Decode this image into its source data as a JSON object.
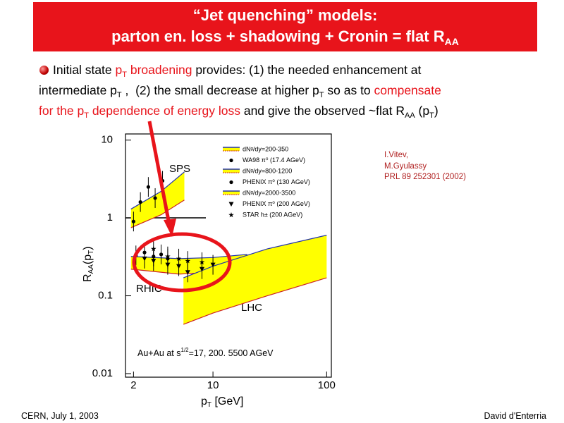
{
  "header": {
    "line1": "“Jet quenching” models:",
    "line2": "parton en. loss + shadowing + Cronin = flat R",
    "line2_sub": "AA"
  },
  "body": {
    "line1": [
      "Initial state ",
      "p",
      "T",
      " broadening",
      " provides: (1) the needed enhancement at"
    ],
    "line2": [
      "intermediate p",
      "T",
      " ,  (2) the small decrease at higher p",
      "T",
      " so as to ",
      "compensate"
    ],
    "line3": [
      "for the p",
      "T",
      " dependence of energy loss",
      " and give the observed ~flat R",
      "AA",
      " (p",
      "T",
      ")"
    ]
  },
  "citation": [
    "I.Vitev,",
    "M.Gyulassy",
    "PRL 89 252301 (2002)"
  ],
  "footer": {
    "left": "CERN, July 1, 2003",
    "right": "David d'Enterria"
  },
  "chart_data": {
    "type": "band",
    "x_label": [
      "p",
      "T",
      " [GeV]"
    ],
    "y_label": [
      "R",
      "AA",
      "(p",
      "T",
      ")"
    ],
    "annotations": {
      "sps": "SPS",
      "rhic": "RHIC",
      "lhc": "LHC",
      "system": [
        "Au+Au at s",
        "1/2",
        "=17, 200. 5500 AGeV"
      ]
    },
    "xlog": true,
    "ylog": true,
    "xlim": [
      1.7,
      110
    ],
    "ylim": [
      0.009,
      12
    ],
    "xticks": [
      2,
      10,
      100
    ],
    "yticks": [
      0.01,
      0.1,
      1,
      10
    ],
    "series": [
      {
        "name": "dNᵍ/dy=200-350",
        "type": "band",
        "color": "#ffff00",
        "line_colors": [
          "#2233aa",
          "#cc2222"
        ],
        "x": [
          1.9,
          3.5,
          5.6
        ],
        "lower": [
          0.75,
          1.1,
          1.7
        ],
        "upper": [
          1.3,
          2.2,
          3.9
        ]
      },
      {
        "name": "WA98 π⁰ (17.4 AGeV)",
        "type": "scatter",
        "marker": "circle",
        "color": "#000000",
        "x": [
          2.0,
          2.3,
          2.7,
          3.1,
          3.6
        ],
        "values": [
          0.9,
          1.6,
          2.5,
          1.8,
          3.0
        ]
      },
      {
        "name": "dNᵍ/dy=800-1200",
        "type": "band",
        "color": "#ffff00",
        "line_colors": [
          "#2233aa",
          "#cc2222"
        ],
        "x": [
          1.9,
          5,
          10,
          20
        ],
        "lower": [
          0.22,
          0.19,
          0.2,
          0.24
        ],
        "upper": [
          0.32,
          0.3,
          0.31,
          0.34
        ]
      },
      {
        "name": "PHENIX π⁰ (130 AGeV)",
        "type": "scatter",
        "marker": "circle",
        "color": "#000000",
        "x": [
          2.1,
          2.5,
          3.0,
          3.5,
          4.0
        ],
        "values": [
          0.33,
          0.36,
          0.32,
          0.34,
          0.3
        ]
      },
      {
        "name": "dNᵍ/dy=2000-3500",
        "type": "band",
        "color": "#ffff00",
        "line_colors": [
          "#2233aa",
          "#cc2222"
        ],
        "x": [
          5.5,
          10,
          30,
          100
        ],
        "lower": [
          0.043,
          0.06,
          0.1,
          0.17
        ],
        "upper": [
          0.17,
          0.24,
          0.4,
          0.6
        ]
      },
      {
        "name": "PHENIX π⁰ (200 AGeV)",
        "type": "scatter",
        "marker": "triangle-down",
        "color": "#000000",
        "x": [
          2.5,
          3.0,
          4.0,
          5.0,
          6.0,
          8.0,
          10.0
        ],
        "values": [
          0.3,
          0.28,
          0.25,
          0.24,
          0.2,
          0.22,
          0.25
        ]
      },
      {
        "name": "STAR h± (200 AGeV)",
        "type": "scatter",
        "marker": "star",
        "color": "#000000",
        "x": [
          3.0,
          4.0,
          5.0,
          6.0,
          8.0
        ],
        "values": [
          0.4,
          0.32,
          0.3,
          0.28,
          0.27
        ]
      }
    ]
  }
}
